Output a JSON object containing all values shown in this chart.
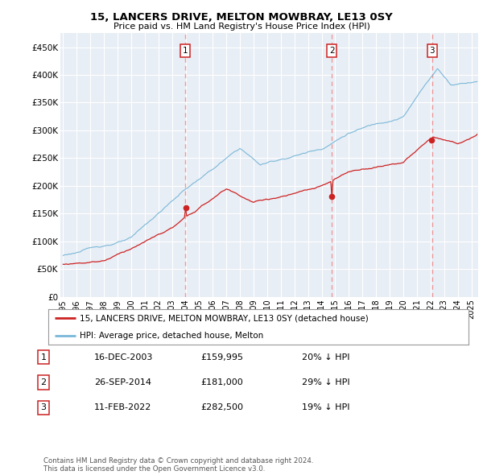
{
  "title": "15, LANCERS DRIVE, MELTON MOWBRAY, LE13 0SY",
  "subtitle": "Price paid vs. HM Land Registry's House Price Index (HPI)",
  "ylim": [
    0,
    475000
  ],
  "yticks": [
    0,
    50000,
    100000,
    150000,
    200000,
    250000,
    300000,
    350000,
    400000,
    450000
  ],
  "ytick_labels": [
    "£0",
    "£50K",
    "£100K",
    "£150K",
    "£200K",
    "£250K",
    "£300K",
    "£350K",
    "£400K",
    "£450K"
  ],
  "hpi_color": "#7ab8d9",
  "price_color": "#cc2222",
  "dashed_color": "#dd8888",
  "plot_bg": "#e8eef5",
  "grid_color": "#ffffff",
  "xmin": 1994.8,
  "xmax": 2025.5,
  "purchase_dates": [
    2003.96,
    2014.74,
    2022.12
  ],
  "purchase_prices": [
    159995,
    181000,
    282500
  ],
  "legend_items": [
    {
      "label": "15, LANCERS DRIVE, MELTON MOWBRAY, LE13 0SY (detached house)",
      "color": "#cc2222"
    },
    {
      "label": "HPI: Average price, detached house, Melton",
      "color": "#7ab8d9"
    }
  ],
  "table_rows": [
    {
      "num": "1",
      "date": "16-DEC-2003",
      "price": "£159,995",
      "pct": "20% ↓ HPI"
    },
    {
      "num": "2",
      "date": "26-SEP-2014",
      "price": "£181,000",
      "pct": "29% ↓ HPI"
    },
    {
      "num": "3",
      "date": "11-FEB-2022",
      "price": "£282,500",
      "pct": "19% ↓ HPI"
    }
  ],
  "footnote": "Contains HM Land Registry data © Crown copyright and database right 2024.\nThis data is licensed under the Open Government Licence v3.0."
}
